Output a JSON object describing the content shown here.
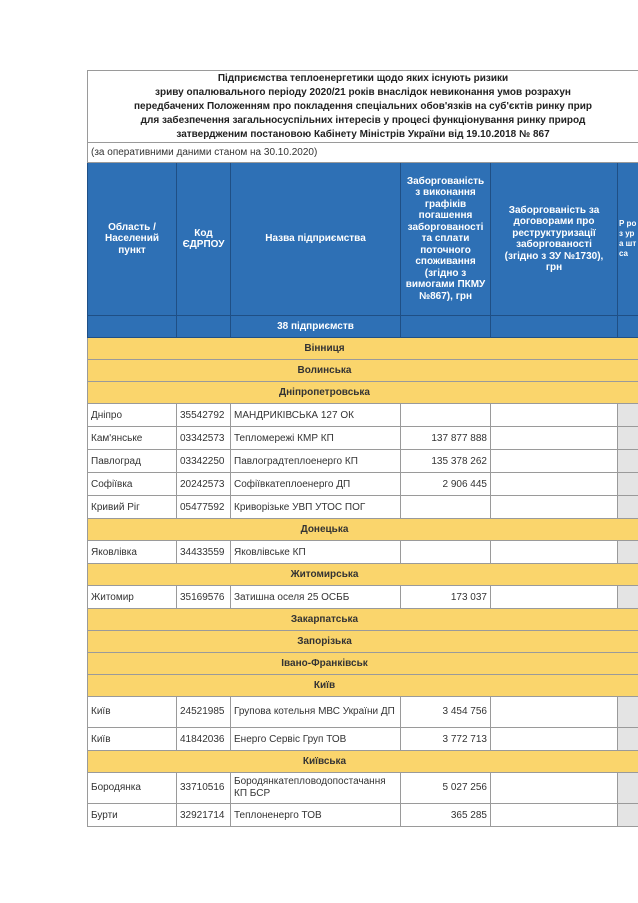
{
  "title_lines": [
    "Підприємства теплоенергетики щодо яких існують ризики",
    "зриву опалювального періоду 2020/21 років внаслідок невиконання умов розрахун",
    "передбачених Положенням про покладення спеціальних обов'язків на суб'єктів ринку прир",
    "для забезпечення загальносуспільних інтересів у процесі функціонування ринку природ",
    "затвердженим постановою Кабінету Міністрів України від 19.10.2018 № 867"
  ],
  "date_note": "(за оперативними даними станом на 30.10.2020)",
  "headers": {
    "region": "Область / Населений пункт",
    "code": "Код ЄДРПОУ",
    "name": "Назва підприємства",
    "debt_schedule": "Заборгованість з виконання графіків погашення заборгованості та сплати поточного споживання (згідно з вимогами ПКМУ №867), грн",
    "debt_restructuring": "Заборгованість за договорами про реструктуризації заборгованості (згідно з ЗУ №1730), грн",
    "clipped": "Р роз ура шт са"
  },
  "total_label": "38 підприємств",
  "sections": [
    {
      "name": "Вінниця",
      "rows": []
    },
    {
      "name": "Волинська",
      "rows": []
    },
    {
      "name": "Дніпропетровська",
      "rows": [
        {
          "city": "Дніпро",
          "code": "35542792",
          "name": "МАНДРИКІВСЬКА 127 ОК",
          "debt": ""
        },
        {
          "city": "Кам'янське",
          "code": "03342573",
          "name": "Тепломережі КМР КП",
          "debt": "137 877 888"
        },
        {
          "city": "Павлоград",
          "code": "03342250",
          "name": "Павлоградтеплоенерго КП",
          "debt": "135 378 262"
        },
        {
          "city": "Софіївка",
          "code": "20242573",
          "name": "Софіївкатеплоенерго ДП",
          "debt": "2 906 445"
        },
        {
          "city": "Кривий Ріг",
          "code": "05477592",
          "name": "Криворізьке УВП УТОС ПОГ",
          "debt": ""
        }
      ]
    },
    {
      "name": "Донецька",
      "rows": [
        {
          "city": "Яковлівка",
          "code": "34433559",
          "name": "Яковлівське КП",
          "debt": ""
        }
      ]
    },
    {
      "name": "Житомирська",
      "rows": [
        {
          "city": "Житомир",
          "code": "35169576",
          "name": "Затишна оселя 25 ОСББ",
          "debt": "173 037"
        }
      ]
    },
    {
      "name": "Закарпатська",
      "rows": []
    },
    {
      "name": "Запорізька",
      "rows": []
    },
    {
      "name": "Івано-Франківськ",
      "rows": []
    },
    {
      "name": "Київ",
      "rows": [
        {
          "city": "Київ",
          "code": "24521985",
          "name": "Групова котельня МВС України ДП",
          "debt": "3 454 756",
          "tall": true
        },
        {
          "city": "Київ",
          "code": "41842036",
          "name": "Енерго Сервіс Груп ТОВ",
          "debt": "3 772 713"
        }
      ]
    },
    {
      "name": "Київська",
      "rows": [
        {
          "city": "Бородянка",
          "code": "33710516",
          "name": "Бородянкатепловодопостачання КП БСР",
          "debt": "5 027 256",
          "tall": true
        },
        {
          "city": "Бурти",
          "code": "32921714",
          "name": "Теплоненерго ТОВ",
          "debt": "365 285"
        }
      ]
    }
  ]
}
